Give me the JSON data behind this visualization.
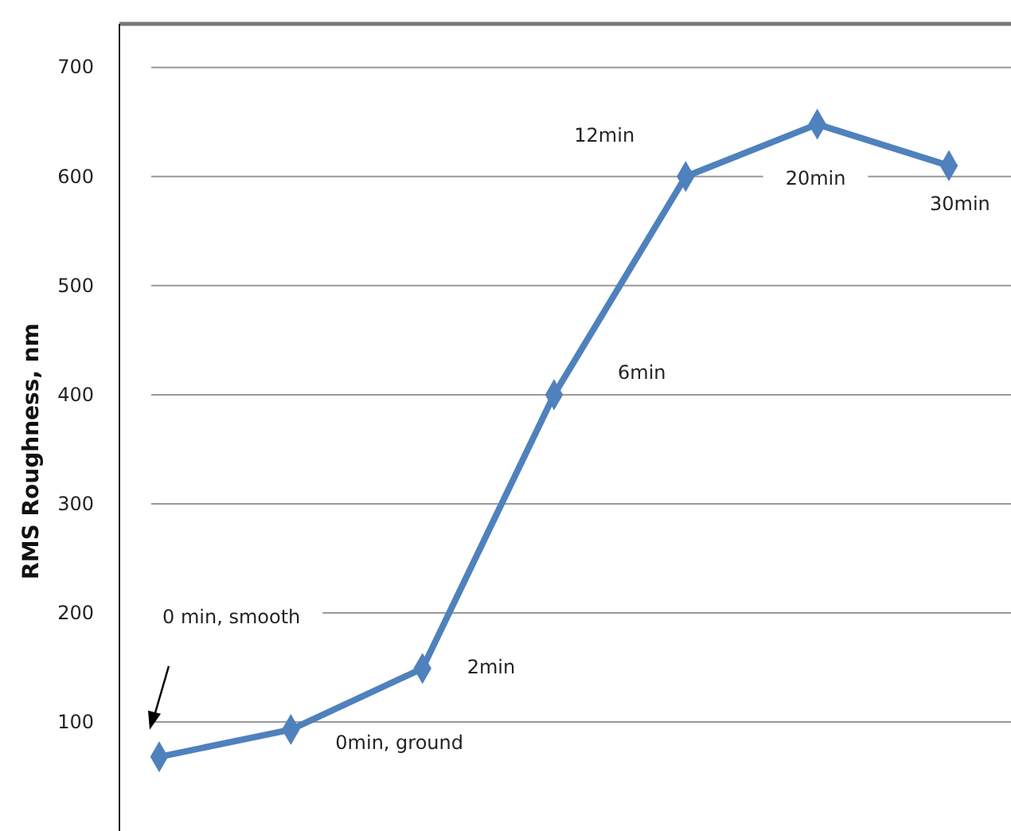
{
  "chart_data": {
    "type": "line",
    "ylabel": "RMS Roughness, nm",
    "categories": [
      null,
      null,
      null,
      null,
      null,
      null,
      null
    ],
    "series": [
      {
        "color": "#4f81bd",
        "values": [
          68,
          93,
          149,
          400,
          600,
          648,
          610
        ]
      }
    ],
    "ylim": [
      0,
      740
    ],
    "yticks": [
      100,
      200,
      300,
      400,
      500,
      600,
      700
    ],
    "grid": "y",
    "marker": "diamond",
    "line_style": "solid",
    "tick_labels": "y",
    "annotations": [
      "0 min, smooth",
      "0min, ground",
      "2min",
      "6min",
      "12min",
      "20min",
      "30min"
    ]
  }
}
